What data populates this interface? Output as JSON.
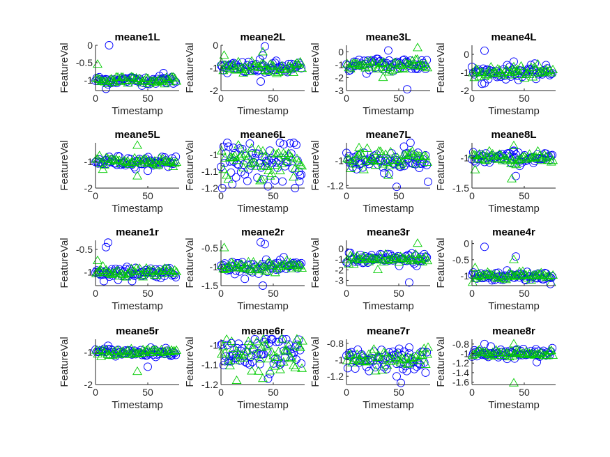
{
  "colors": {
    "series_circle": "#0000ff",
    "series_triangle": "#00cc00",
    "axis": "#262626"
  },
  "chart_data": [
    {
      "type": "scatter",
      "title": "meane1L",
      "xlabel": "Timestamp",
      "ylabel": "FeatureVal",
      "xlim": [
        0,
        80
      ],
      "ylim": [
        -1.3,
        0
      ],
      "xticks": [
        "0",
        "50"
      ],
      "yticks": [
        {
          "v": 0,
          "label": "0"
        },
        {
          "v": -0.5,
          "label": "-0.5"
        },
        {
          "v": -1,
          "label": "-1"
        }
      ],
      "center": -1.0,
      "spread": 0.06,
      "outliers_circle": [
        [
          13,
          0
        ],
        [
          10,
          -1.25
        ],
        [
          65,
          -0.8
        ]
      ],
      "outliers_triangle": [
        [
          2,
          -0.55
        ]
      ]
    },
    {
      "type": "scatter",
      "title": "meane2L",
      "xlabel": "Timestamp",
      "ylabel": "FeatureVal",
      "xlim": [
        0,
        80
      ],
      "ylim": [
        -2,
        0
      ],
      "xticks": [
        "0",
        "50"
      ],
      "yticks": [
        {
          "v": 0,
          "label": "0"
        },
        {
          "v": -1,
          "label": "-1"
        },
        {
          "v": -2,
          "label": "-2"
        }
      ],
      "center": -1.0,
      "spread": 0.15,
      "outliers_circle": [
        [
          42,
          -0.05
        ],
        [
          38,
          -1.6
        ],
        [
          40,
          -0.45
        ]
      ],
      "outliers_triangle": [
        [
          3,
          -0.45
        ],
        [
          40,
          -0.3
        ]
      ]
    },
    {
      "type": "scatter",
      "title": "meane3L",
      "xlabel": "Timestamp",
      "ylabel": "FeatureVal",
      "xlim": [
        0,
        80
      ],
      "ylim": [
        -3,
        0.5
      ],
      "xticks": [
        "0",
        "50"
      ],
      "yticks": [
        {
          "v": 0,
          "label": "0"
        },
        {
          "v": -1,
          "label": "-1"
        },
        {
          "v": -2,
          "label": "-2"
        },
        {
          "v": -3,
          "label": "-3"
        }
      ],
      "center": -1.0,
      "spread": 0.3,
      "outliers_circle": [
        [
          58,
          -2.9
        ],
        [
          40,
          0.1
        ]
      ],
      "outliers_triangle": [
        [
          68,
          0.3
        ],
        [
          35,
          -2.0
        ]
      ]
    },
    {
      "type": "scatter",
      "title": "meane4L",
      "xlabel": "Timestamp",
      "ylabel": "FeatureVal",
      "xlim": [
        0,
        80
      ],
      "ylim": [
        -2,
        0.5
      ],
      "xticks": [
        "0",
        "50"
      ],
      "yticks": [
        {
          "v": 0,
          "label": "0"
        },
        {
          "v": -1,
          "label": "-1"
        },
        {
          "v": -2,
          "label": "-2"
        }
      ],
      "center": -1.0,
      "spread": 0.18,
      "outliers_circle": [
        [
          12,
          0.2
        ],
        [
          12,
          -1.6
        ],
        [
          40,
          -0.4
        ]
      ],
      "outliers_triangle": [
        [
          40,
          -0.7
        ]
      ]
    },
    {
      "type": "scatter",
      "title": "meane5L",
      "xlabel": "Timestamp",
      "ylabel": "FeatureVal",
      "xlim": [
        0,
        80
      ],
      "ylim": [
        -2,
        -0.3
      ],
      "xticks": [
        "0",
        "50"
      ],
      "yticks": [
        {
          "v": -1,
          "label": "-1"
        },
        {
          "v": -2,
          "label": "-2"
        }
      ],
      "center": -1.0,
      "spread": 0.1,
      "outliers_circle": [
        [
          50,
          -1.35
        ]
      ],
      "outliers_triangle": [
        [
          40,
          -0.4
        ],
        [
          40,
          -1.55
        ]
      ]
    },
    {
      "type": "scatter",
      "title": "meane6L",
      "xlabel": "Timestamp",
      "ylabel": "FeatureVal",
      "xlim": [
        0,
        80
      ],
      "ylim": [
        -1.2,
        -0.93
      ],
      "xticks": [
        "0",
        "50"
      ],
      "yticks": [
        {
          "v": -1,
          "label": "-1"
        },
        {
          "v": -1.1,
          "label": "-1.1"
        },
        {
          "v": -1.2,
          "label": "-1.2"
        }
      ],
      "center": -1.05,
      "spread": 0.06,
      "outliers_circle": [
        [
          12,
          -0.96
        ],
        [
          45,
          -1.19
        ],
        [
          75,
          -1.16
        ]
      ],
      "outliers_triangle": [
        [
          40,
          -0.98
        ]
      ]
    },
    {
      "type": "scatter",
      "title": "meane7L",
      "xlabel": "Timestamp",
      "ylabel": "FeatureVal",
      "xlim": [
        0,
        80
      ],
      "ylim": [
        -1.22,
        -0.86
      ],
      "xticks": [
        "0",
        "50"
      ],
      "yticks": [
        {
          "v": -1,
          "label": "-1"
        },
        {
          "v": -1.2,
          "label": "-1.2"
        }
      ],
      "center": -1.0,
      "spread": 0.05,
      "outliers_circle": [
        [
          48,
          -1.21
        ],
        [
          78,
          -1.17
        ],
        [
          55,
          -0.89
        ]
      ],
      "outliers_triangle": [
        [
          40,
          -1.12
        ],
        [
          12,
          -0.9
        ]
      ]
    },
    {
      "type": "scatter",
      "title": "meane8L",
      "xlabel": "Timestamp",
      "ylabel": "FeatureVal",
      "xlim": [
        0,
        80
      ],
      "ylim": [
        -1.5,
        -0.75
      ],
      "xticks": [
        "0",
        "50"
      ],
      "yticks": [
        {
          "v": -1,
          "label": "-1"
        },
        {
          "v": -1.5,
          "label": "-1.5"
        }
      ],
      "center": -1.0,
      "spread": 0.05,
      "outliers_circle": [
        [
          42,
          -1.3
        ],
        [
          40,
          -0.88
        ]
      ],
      "outliers_triangle": [
        [
          40,
          -0.8
        ],
        [
          38,
          -1.35
        ],
        [
          3,
          -1.2
        ]
      ]
    },
    {
      "type": "scatter",
      "title": "meane1r",
      "xlabel": "Timestamp",
      "ylabel": "FeatureVal",
      "xlim": [
        0,
        80
      ],
      "ylim": [
        -1.3,
        -0.3
      ],
      "xticks": [
        "0",
        "50"
      ],
      "yticks": [
        {
          "v": -0.5,
          "label": "-0.5"
        },
        {
          "v": -1,
          "label": "-1"
        }
      ],
      "center": -1.0,
      "spread": 0.06,
      "outliers_circle": [
        [
          12,
          -0.35
        ],
        [
          10,
          -0.45
        ],
        [
          8,
          -1.2
        ],
        [
          35,
          -1.2
        ]
      ],
      "outliers_triangle": [
        [
          2,
          -0.75
        ]
      ]
    },
    {
      "type": "scatter",
      "title": "meane2r",
      "xlabel": "Timestamp",
      "ylabel": "FeatureVal",
      "xlim": [
        0,
        80
      ],
      "ylim": [
        -1.5,
        -0.3
      ],
      "xticks": [
        "0",
        "50"
      ],
      "yticks": [
        {
          "v": -0.5,
          "label": "-0.5"
        },
        {
          "v": -1,
          "label": "-1"
        },
        {
          "v": -1.5,
          "label": "-1.5"
        }
      ],
      "center": -1.0,
      "spread": 0.08,
      "outliers_circle": [
        [
          38,
          -0.35
        ],
        [
          40,
          -1.5
        ],
        [
          42,
          -0.4
        ]
      ],
      "outliers_triangle": [
        [
          3,
          -0.5
        ]
      ]
    },
    {
      "type": "scatter",
      "title": "meane3r",
      "xlabel": "Timestamp",
      "ylabel": "FeatureVal",
      "xlim": [
        0,
        80
      ],
      "ylim": [
        -3.5,
        0.8
      ],
      "xticks": [
        "0",
        "50"
      ],
      "yticks": [
        {
          "v": 0,
          "label": "0"
        },
        {
          "v": -1,
          "label": "-1"
        },
        {
          "v": -2,
          "label": "-2"
        },
        {
          "v": -3,
          "label": "-3"
        }
      ],
      "center": -1.0,
      "spread": 0.3,
      "outliers_circle": [
        [
          60,
          -3.2
        ]
      ],
      "outliers_triangle": [
        [
          68,
          0.5
        ],
        [
          30,
          -2.0
        ]
      ]
    },
    {
      "type": "scatter",
      "title": "meane4r",
      "xlabel": "Timestamp",
      "ylabel": "FeatureVal",
      "xlim": [
        0,
        80
      ],
      "ylim": [
        -1.3,
        0.1
      ],
      "xticks": [
        "0",
        "50"
      ],
      "yticks": [
        {
          "v": 0,
          "label": "0"
        },
        {
          "v": -0.5,
          "label": "-0.5"
        },
        {
          "v": -1,
          "label": "-1"
        }
      ],
      "center": -1.0,
      "spread": 0.08,
      "outliers_circle": [
        [
          12,
          -0.1
        ],
        [
          42,
          -0.4
        ],
        [
          75,
          -1.25
        ]
      ],
      "outliers_triangle": [
        [
          40,
          -0.5
        ],
        [
          3,
          -0.75
        ]
      ]
    },
    {
      "type": "scatter",
      "title": "meane5r",
      "xlabel": "Timestamp",
      "ylabel": "FeatureVal",
      "xlim": [
        0,
        80
      ],
      "ylim": [
        -2,
        -0.6
      ],
      "xticks": [
        "0",
        "50"
      ],
      "yticks": [
        {
          "v": -1,
          "label": "-1"
        },
        {
          "v": -2,
          "label": "-2"
        }
      ],
      "center": -1.0,
      "spread": 0.06,
      "outliers_circle": [
        [
          50,
          -1.45
        ],
        [
          12,
          -0.8
        ]
      ],
      "outliers_triangle": [
        [
          40,
          -1.6
        ]
      ]
    },
    {
      "type": "scatter",
      "title": "meane6r",
      "xlabel": "Timestamp",
      "ylabel": "FeatureVal",
      "xlim": [
        0,
        80
      ],
      "ylim": [
        -1.2,
        -0.97
      ],
      "xticks": [
        "0",
        "50"
      ],
      "yticks": [
        {
          "v": -1,
          "label": "-1"
        },
        {
          "v": -1.1,
          "label": "-1.1"
        },
        {
          "v": -1.2,
          "label": "-1.2"
        }
      ],
      "center": -1.05,
      "spread": 0.05,
      "outliers_circle": [
        [
          10,
          -0.99
        ],
        [
          45,
          -1.17
        ]
      ],
      "outliers_triangle": [
        [
          78,
          -0.98
        ],
        [
          15,
          -1.18
        ],
        [
          40,
          -1.17
        ]
      ]
    },
    {
      "type": "scatter",
      "title": "meane7r",
      "xlabel": "Timestamp",
      "ylabel": "FeatureVal",
      "xlim": [
        0,
        80
      ],
      "ylim": [
        -1.3,
        -0.75
      ],
      "xticks": [
        "0",
        "50"
      ],
      "yticks": [
        {
          "v": -0.8,
          "label": "-0.8"
        },
        {
          "v": -1,
          "label": "-1"
        },
        {
          "v": -1.2,
          "label": "-1.2"
        }
      ],
      "center": -1.0,
      "spread": 0.07,
      "outliers_circle": [
        [
          52,
          -1.28
        ],
        [
          48,
          -1.2
        ],
        [
          60,
          -0.85
        ]
      ],
      "outliers_triangle": [
        [
          78,
          -0.85
        ]
      ]
    },
    {
      "type": "scatter",
      "title": "meane8r",
      "xlabel": "Timestamp",
      "ylabel": "FeatureVal",
      "xlim": [
        0,
        80
      ],
      "ylim": [
        -1.65,
        -0.7
      ],
      "xticks": [
        "0",
        "50"
      ],
      "yticks": [
        {
          "v": -0.8,
          "label": "-0.8"
        },
        {
          "v": -1,
          "label": "-1"
        },
        {
          "v": -1.2,
          "label": "-1.2"
        },
        {
          "v": -1.4,
          "label": "-1.4"
        },
        {
          "v": -1.6,
          "label": "-1.6"
        }
      ],
      "center": -1.0,
      "spread": 0.05,
      "outliers_circle": [
        [
          12,
          -0.8
        ],
        [
          18,
          -0.85
        ],
        [
          62,
          -1.18
        ]
      ],
      "outliers_triangle": [
        [
          40,
          -0.8
        ],
        [
          40,
          -1.62
        ]
      ]
    }
  ]
}
